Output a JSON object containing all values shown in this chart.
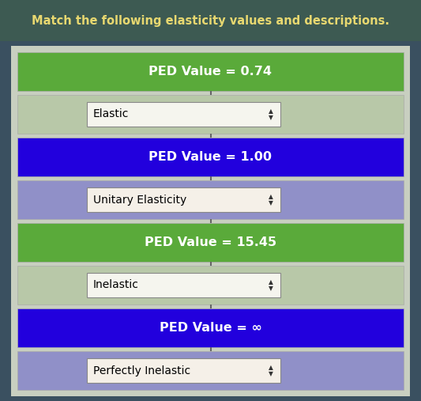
{
  "title": "Match the following elasticity values and descriptions.",
  "title_bg": "#3d5a52",
  "title_color": "#e8d870",
  "outer_bg": "#3a5060",
  "inner_bg": "#c8cfc0",
  "rows": [
    {
      "type": "ped",
      "text": "PED Value = 0.74",
      "bg": "#5aaa3a",
      "text_color": "#ffffff",
      "connector": true
    },
    {
      "type": "answer",
      "text": "Elastic",
      "bg": "#b8c8a8",
      "box_bg": "#f5f5ee",
      "text_color": "#000000",
      "connector": true
    },
    {
      "type": "ped",
      "text": "PED Value = 1.00",
      "bg": "#2200dd",
      "text_color": "#ffffff",
      "connector": true
    },
    {
      "type": "answer",
      "text": "Unitary Elasticity",
      "bg": "#9090c8",
      "box_bg": "#f5f0e8",
      "text_color": "#000000",
      "connector": true
    },
    {
      "type": "ped",
      "text": "PED Value = 15.45",
      "bg": "#5aaa3a",
      "text_color": "#ffffff",
      "connector": true
    },
    {
      "type": "answer",
      "text": "Inelastic",
      "bg": "#b8c8a8",
      "box_bg": "#f5f5ee",
      "text_color": "#000000",
      "connector": true
    },
    {
      "type": "ped",
      "text": "PED Value = ∞",
      "bg": "#2200dd",
      "text_color": "#ffffff",
      "connector": true
    },
    {
      "type": "answer",
      "text": "Perfectly Inelastic",
      "bg": "#9090c8",
      "box_bg": "#f5f0e8",
      "text_color": "#000000",
      "connector": false
    }
  ],
  "figsize": [
    5.33,
    5.07
  ],
  "dpi": 100
}
